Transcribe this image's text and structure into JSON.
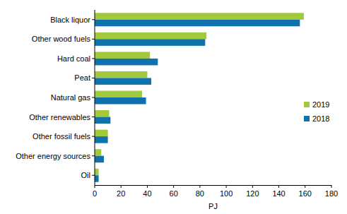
{
  "chart_data": {
    "type": "bar",
    "orientation": "horizontal",
    "x_label": "PJ",
    "categories": [
      "Black liquor",
      "Other wood fuels",
      "Hard coal",
      "Peat",
      "Natural gas",
      "Other renewables",
      "Other fossil fuels",
      "Other energy sources",
      "Oil"
    ],
    "series": [
      {
        "name": "2019",
        "color": "#a2c83c",
        "values": [
          159,
          85,
          42,
          40,
          36,
          11,
          10,
          5,
          3
        ]
      },
      {
        "name": "2018",
        "color": "#0f72ad",
        "values": [
          156,
          84,
          48,
          43,
          39,
          12,
          10,
          7,
          3
        ]
      }
    ],
    "xlim": [
      0,
      180
    ],
    "xticks": [
      0,
      20,
      40,
      60,
      80,
      100,
      120,
      140,
      160,
      180
    ],
    "grid": false,
    "legend": "right"
  }
}
